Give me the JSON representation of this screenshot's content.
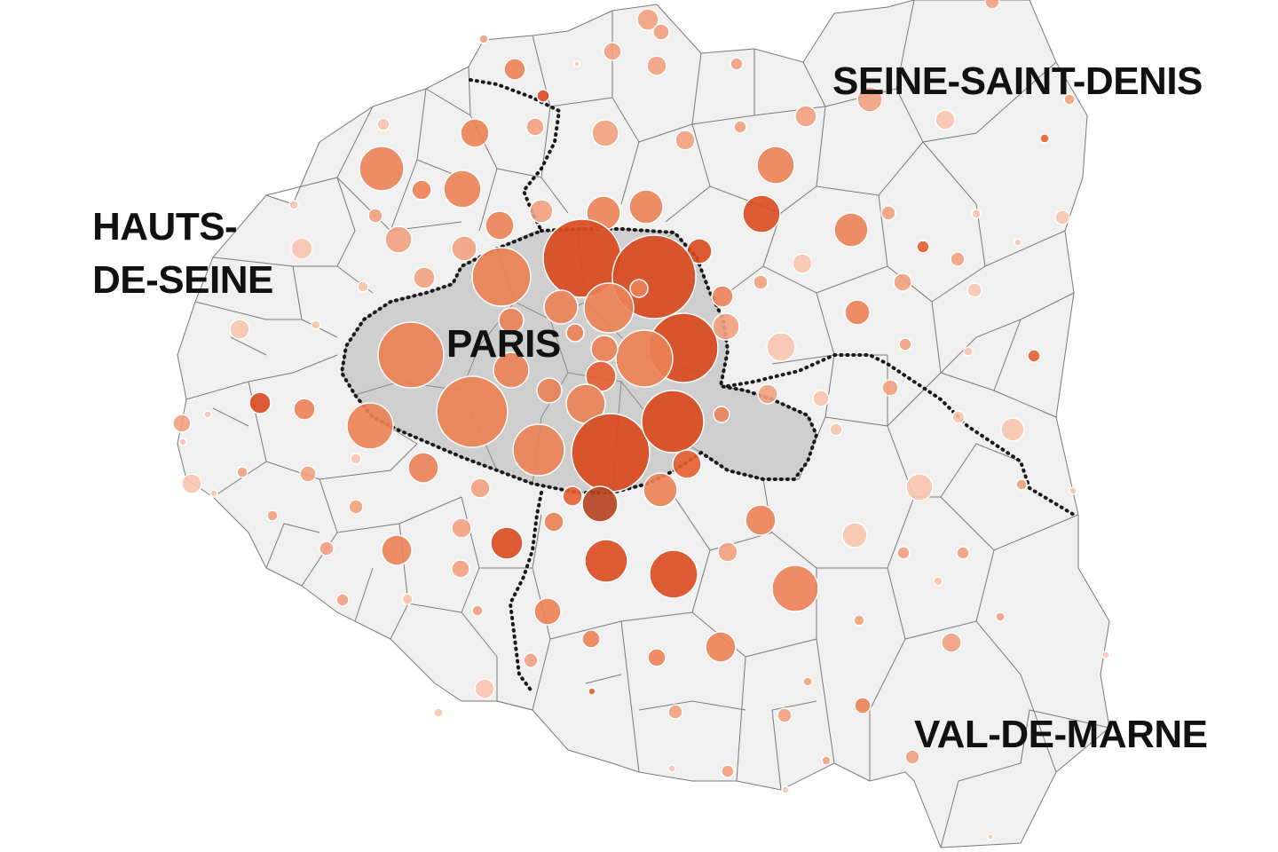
{
  "labels": {
    "seine_saint_denis": "SEINE-SAINT-DENIS",
    "hauts_de_seine_1": "HAUTS-",
    "hauts_de_seine_2": "DE-SEINE",
    "paris": "PARIS",
    "val_de_marne": "VAL-DE-MARNE"
  },
  "colors": {
    "commune_fill": "#f0f0f0",
    "commune_stroke": "#7a7a7a",
    "paris_fill": "#cecece",
    "boundary": "#1a1a1a",
    "bubble_scale": [
      "#f8c4ae",
      "#f2a07e",
      "#ec8256",
      "#e65e32",
      "#d94a1f",
      "#b5401e"
    ]
  },
  "legend": "none"
}
